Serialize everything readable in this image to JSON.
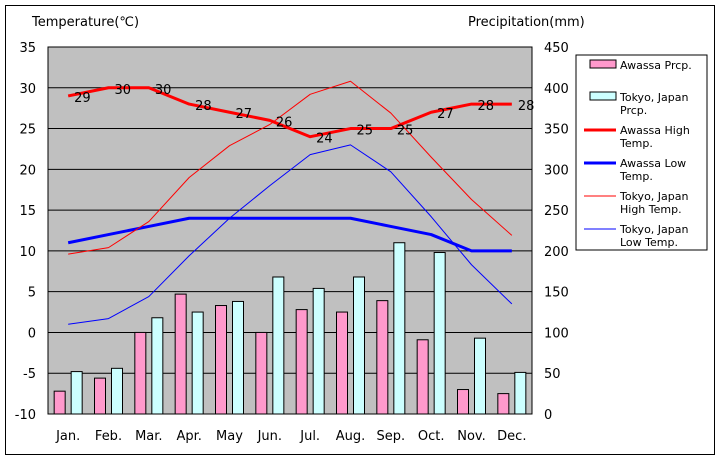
{
  "chart_data": {
    "type": "bar",
    "left_axis_title": "Temperature(℃)",
    "right_axis_title": "Precipitation(mm)",
    "categories": [
      "Jan.",
      "Feb.",
      "Mar.",
      "Apr.",
      "May",
      "Jun.",
      "Jul.",
      "Aug.",
      "Sep.",
      "Oct.",
      "Nov.",
      "Dec."
    ],
    "y_left": {
      "min": -10,
      "max": 35,
      "ticks": [
        35,
        30,
        25,
        20,
        15,
        10,
        5,
        0,
        -5,
        -10
      ]
    },
    "y_right": {
      "min": 0,
      "max": 450,
      "ticks": [
        450,
        400,
        350,
        300,
        250,
        200,
        150,
        100,
        50,
        0
      ]
    },
    "grid": true,
    "legend_position": "right",
    "bar_series": [
      {
        "name": "Awassa Prcp.",
        "color": "#ff99cc",
        "values": [
          28,
          44,
          100,
          147,
          133,
          100,
          128,
          125,
          139,
          91,
          30,
          25
        ]
      },
      {
        "name": "Tokyo, Japan Prcp.",
        "color": "#ccffff",
        "values": [
          52,
          56,
          118,
          125,
          138,
          168,
          154,
          168,
          210,
          198,
          93,
          51
        ]
      }
    ],
    "line_series": [
      {
        "name": "Awassa High Temp.",
        "color": "#ff0000",
        "width": 3,
        "values": [
          29,
          30,
          30,
          28,
          27,
          26,
          24,
          25,
          25,
          27,
          28,
          28
        ],
        "show_labels": true
      },
      {
        "name": "Awassa Low Temp.",
        "color": "#0000ff",
        "width": 3,
        "values": [
          11,
          12,
          13,
          14,
          14,
          14,
          14,
          14,
          13,
          12,
          10,
          10
        ],
        "show_labels": false
      },
      {
        "name": "Tokyo, Japan High Temp.",
        "color": "#ff0000",
        "width": 1,
        "values": [
          9.6,
          10.4,
          13.6,
          19,
          22.9,
          25.5,
          29.2,
          30.8,
          26.9,
          21.5,
          16.3,
          11.9
        ],
        "show_labels": false
      },
      {
        "name": "Tokyo, Japan Low Temp.",
        "color": "#0000ff",
        "width": 1,
        "values": [
          1,
          1.7,
          4.4,
          9.4,
          14,
          18,
          21.8,
          23,
          19.7,
          14.2,
          8.3,
          3.5
        ],
        "show_labels": false
      }
    ],
    "legend": [
      {
        "type": "bar",
        "color": "#ff99cc",
        "lines": [
          "Awassa Prcp."
        ]
      },
      {
        "type": "bar",
        "color": "#ccffff",
        "lines": [
          "Tokyo, Japan",
          "Prcp."
        ]
      },
      {
        "type": "line",
        "color": "#ff0000",
        "width": 3,
        "lines": [
          "Awassa High",
          "Temp."
        ]
      },
      {
        "type": "line",
        "color": "#0000ff",
        "width": 3,
        "lines": [
          "Awassa Low",
          "Temp."
        ]
      },
      {
        "type": "line",
        "color": "#ff0000",
        "width": 1,
        "lines": [
          "Tokyo, Japan",
          "High Temp."
        ]
      },
      {
        "type": "line",
        "color": "#0000ff",
        "width": 1,
        "lines": [
          "Tokyo, Japan",
          "Low Temp."
        ]
      }
    ],
    "plot_background": "#c0c0c0"
  }
}
